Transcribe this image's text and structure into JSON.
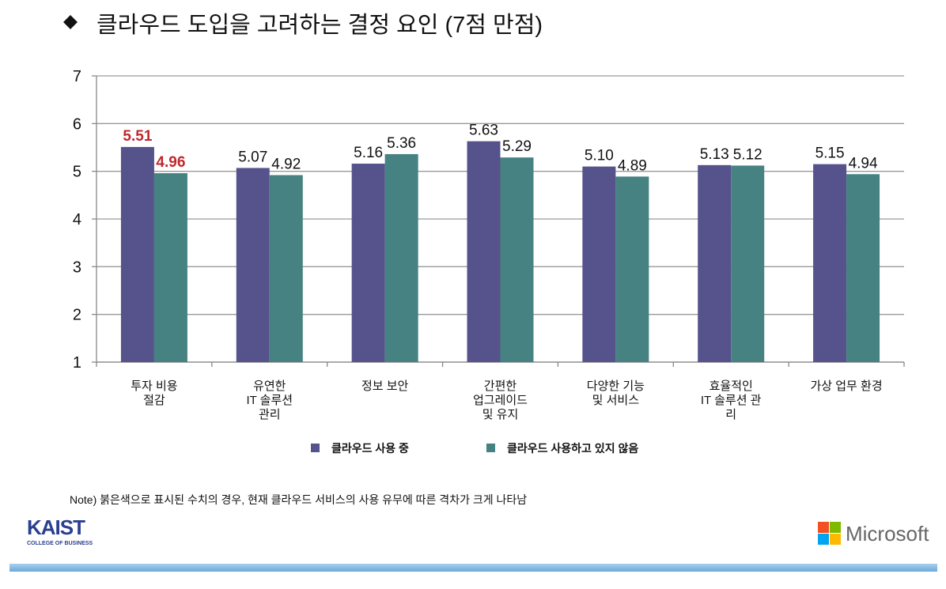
{
  "chart_data": {
    "type": "bar",
    "title": "클라우드 도입을 고려하는 결정 요인 (7점 만점)",
    "categories": [
      "투자 비용\n절감",
      "유연한\nIT 솔루션\n관리",
      "정보 보안",
      "간편한\n업그레이드\n및 유지",
      "다양한 기능\n및 서비스",
      "효율적인\nIT 솔루션 관\n리",
      "가상 업무 환경"
    ],
    "series": [
      {
        "name": "클라우드 사용 중",
        "color": "#56528c",
        "values": [
          5.51,
          5.07,
          5.16,
          5.63,
          5.1,
          5.13,
          5.15
        ],
        "value_labels": [
          "5.51",
          "5.07",
          "5.16",
          "5.63",
          "5.10",
          "5.13",
          "5.15"
        ],
        "label_colors": [
          "#c0272d",
          "#111111",
          "#111111",
          "#111111",
          "#111111",
          "#111111",
          "#111111"
        ]
      },
      {
        "name": "클라우드 사용하고 있지 않음",
        "color": "#468282",
        "values": [
          4.96,
          4.92,
          5.36,
          5.29,
          4.89,
          5.12,
          4.94
        ],
        "value_labels": [
          "4.96",
          "4.92",
          "5.36",
          "5.29",
          "4.89",
          "5.12",
          "4.94"
        ],
        "label_colors": [
          "#c0272d",
          "#111111",
          "#111111",
          "#111111",
          "#111111",
          "#111111",
          "#111111"
        ]
      }
    ],
    "ylim": [
      1,
      7
    ],
    "yticks": [
      1,
      2,
      3,
      4,
      5,
      6,
      7
    ],
    "grid": true
  },
  "note": "Note) 붉은색으로 표시된 수치의 경우, 현재 클라우드 서비스의 사용 유무에 따른 격차가 크게 나타남",
  "footer": {
    "logo_text": "KAIST",
    "logo_subtext": "COLLEGE OF BUSINESS",
    "brand": "Microsoft"
  }
}
